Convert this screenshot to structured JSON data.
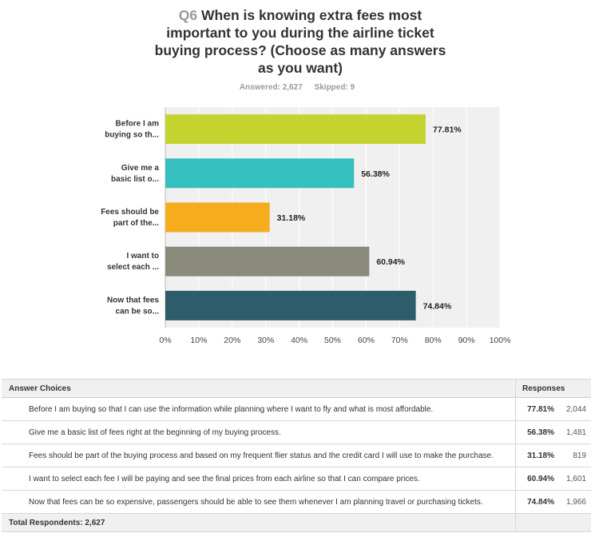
{
  "question": {
    "number": "Q6",
    "text": "When is knowing extra fees most important to you during the airline ticket buying process? (Choose as many answers as you want)"
  },
  "stats": {
    "answered": "Answered: 2,627",
    "skipped": "Skipped: 9"
  },
  "chart_data": {
    "type": "bar",
    "orientation": "horizontal",
    "categories": [
      "Before I am buying so th...",
      "Give me a basic list o...",
      "Fees should be part of the...",
      "I want to select each ...",
      "Now that fees can be so..."
    ],
    "category_lines": [
      [
        "Before I am",
        "buying so th..."
      ],
      [
        "Give me a",
        "basic list o..."
      ],
      [
        "Fees should be",
        "part of the..."
      ],
      [
        "I want to",
        "select each ..."
      ],
      [
        "Now that fees",
        "can be so..."
      ]
    ],
    "values": [
      77.81,
      56.38,
      31.18,
      60.94,
      74.84
    ],
    "value_labels": [
      "77.81%",
      "56.38%",
      "31.18%",
      "60.94%",
      "74.84%"
    ],
    "colors": [
      "#c5d331",
      "#35bfbf",
      "#f5ad1e",
      "#8a8a7b",
      "#2d5d6a"
    ],
    "xlim": [
      0,
      100
    ],
    "ticks": [
      "0%",
      "10%",
      "20%",
      "30%",
      "40%",
      "50%",
      "60%",
      "70%",
      "80%",
      "90%",
      "100%"
    ],
    "grid": true,
    "plot_background": "#f0f0f0"
  },
  "table": {
    "headers": {
      "choices": "Answer Choices",
      "responses": "Responses"
    },
    "rows": [
      {
        "choice": "Before I am buying so that I can use the information while planning where I want to fly and what is most affordable.",
        "percent": "77.81%",
        "count": "2,044"
      },
      {
        "choice": "Give me a basic list of fees right at the beginning of my buying process.",
        "percent": "56.38%",
        "count": "1,481"
      },
      {
        "choice": "Fees should be part of the buying process and based on my frequent flier status and the credit card I will use to make the purchase.",
        "percent": "31.18%",
        "count": "819"
      },
      {
        "choice": "I want to select each fee I will be paying and see the final prices from each airline so that I can compare prices.",
        "percent": "60.94%",
        "count": "1,601"
      },
      {
        "choice": "Now that fees can be so expensive, passengers should be able to see them whenever I am planning travel or purchasing tickets.",
        "percent": "74.84%",
        "count": "1,966"
      }
    ],
    "total": "Total Respondents: 2,627"
  }
}
